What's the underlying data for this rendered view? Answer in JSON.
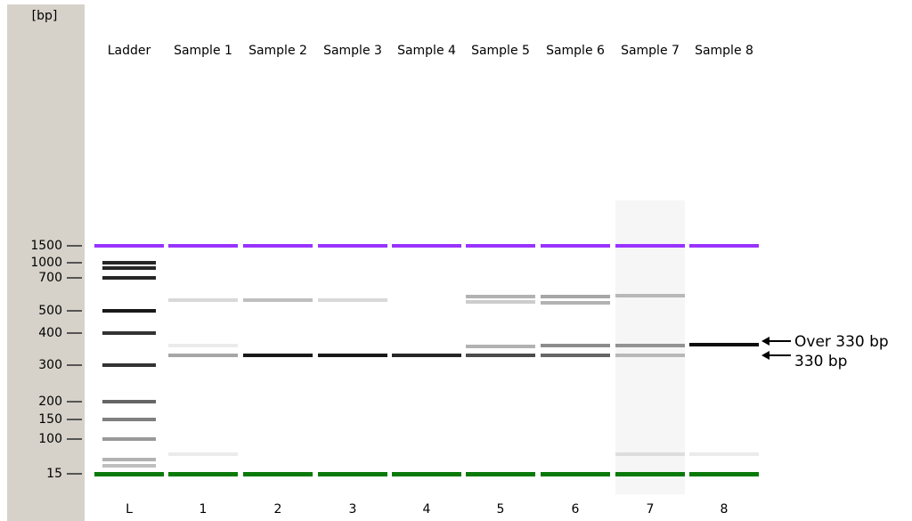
{
  "axis": {
    "unit": "[bp]",
    "ticks": [
      1500,
      1000,
      700,
      500,
      400,
      300,
      200,
      150,
      100,
      15
    ]
  },
  "lanes": [
    {
      "name": "Ladder",
      "label": "L"
    },
    {
      "name": "Sample 1",
      "label": "1"
    },
    {
      "name": "Sample 2",
      "label": "2"
    },
    {
      "name": "Sample 3",
      "label": "3"
    },
    {
      "name": "Sample 4",
      "label": "4"
    },
    {
      "name": "Sample 5",
      "label": "5"
    },
    {
      "name": "Sample 6",
      "label": "6"
    },
    {
      "name": "Sample 7",
      "label": "7"
    },
    {
      "name": "Sample 8",
      "label": "8"
    }
  ],
  "annotations": [
    "Over 330 bp",
    "330 bp"
  ]
}
